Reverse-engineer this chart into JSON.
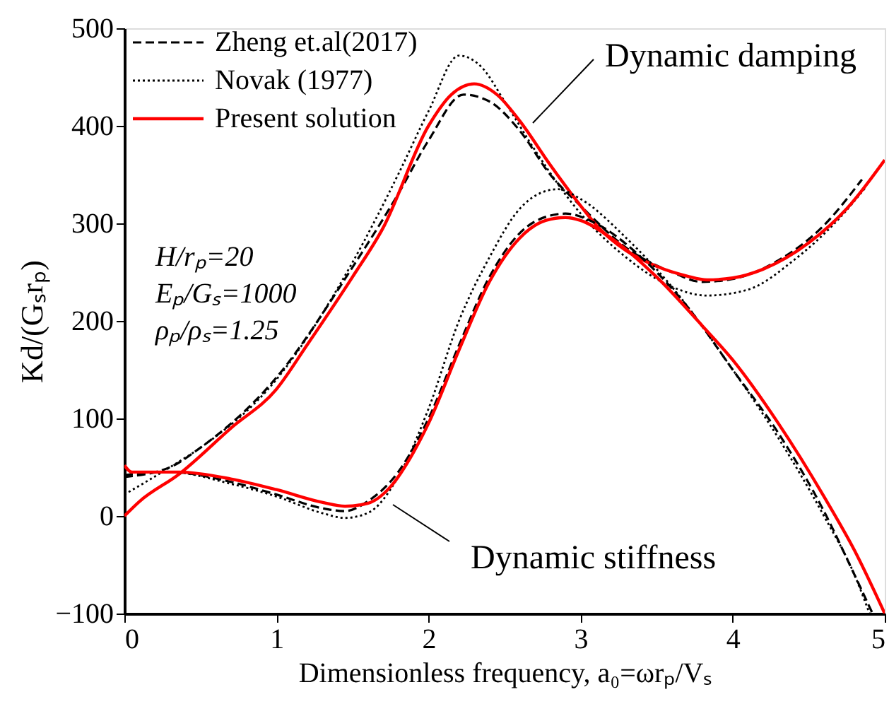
{
  "chart_data": {
    "type": "line",
    "xlabel": "Dimensionless frequency, a₀=ωrₚ/Vₛ",
    "ylabel": "Kd/(Gₛrₚ)",
    "xlim": [
      0,
      5
    ],
    "xticks": [
      0,
      1,
      2,
      3,
      4,
      5
    ],
    "ylim": [
      -100,
      500
    ],
    "yticks": [
      -100,
      0,
      100,
      200,
      300,
      400,
      500
    ],
    "grid": false,
    "legend": "top left",
    "series": [
      {
        "name": "Zheng et.al(2017)",
        "color": "#000000",
        "line_style": "dashed",
        "x": [
          0,
          0.3,
          0.5,
          1,
          1.5,
          1.8,
          2.0,
          2.23,
          2.4,
          2.6,
          2.8,
          3.0,
          3.3,
          3.6,
          3.8,
          4.0,
          4.3,
          4.6,
          4.85
        ],
        "values": [
          40,
          50,
          70,
          142,
          255,
          330,
          385,
          432,
          425,
          395,
          350,
          318,
          275,
          250,
          240,
          243,
          262,
          298,
          345
        ]
      },
      {
        "name": "Novak (1977)",
        "color": "#000000",
        "line_style": "dotted",
        "x": [
          0,
          0.3,
          0.5,
          1,
          1.5,
          1.8,
          2.0,
          2.2,
          2.35,
          2.5,
          2.7,
          3.0,
          3.3,
          3.6,
          3.83,
          4.1,
          4.4,
          4.7,
          4.88
        ],
        "values": [
          22,
          50,
          70,
          140,
          260,
          350,
          415,
          472,
          460,
          425,
          375,
          310,
          265,
          235,
          226,
          232,
          262,
          305,
          338
        ]
      },
      {
        "name": "Present solution",
        "color": "#ff0000",
        "line_style": "solid",
        "x": [
          0,
          0.1,
          0.36,
          0.7,
          1,
          1.2,
          1.5,
          1.7,
          2.0,
          2.15,
          2.3,
          2.45,
          2.6,
          2.8,
          3.0,
          3.11,
          3.3,
          3.5,
          3.7,
          3.83,
          4.0,
          4.2,
          4.5,
          4.75,
          5.0
        ],
        "values": [
          0,
          15,
          43,
          90,
          130,
          175,
          245,
          295,
          400,
          432,
          443,
          432,
          405,
          360,
          318,
          297,
          272,
          256,
          246,
          242,
          244,
          253,
          280,
          315,
          365
        ]
      },
      {
        "color": "#000000",
        "line_style": "dashed",
        "x": [
          0,
          0.3,
          0.7,
          1.0,
          1.3,
          1.45,
          1.6,
          1.8,
          2.0,
          2.2,
          2.4,
          2.6,
          2.8,
          2.9,
          3.1,
          3.4,
          3.7,
          4.0,
          4.3,
          4.6,
          4.8,
          4.92
        ],
        "values": [
          42,
          45,
          35,
          22,
          8,
          5,
          15,
          45,
          100,
          175,
          245,
          290,
          308,
          310,
          300,
          265,
          215,
          150,
          85,
          5,
          -60,
          -100
        ]
      },
      {
        "color": "#000000",
        "line_style": "dotted",
        "x": [
          0,
          0.3,
          0.7,
          1.0,
          1.3,
          1.45,
          1.6,
          1.8,
          2.0,
          2.2,
          2.4,
          2.6,
          2.75,
          2.85,
          3.0,
          3.3,
          3.6,
          4.0,
          4.3,
          4.6,
          4.8,
          4.9
        ],
        "values": [
          45,
          45,
          33,
          20,
          3,
          -2,
          3,
          40,
          110,
          200,
          265,
          315,
          332,
          335,
          325,
          285,
          235,
          150,
          80,
          0,
          -60,
          -100
        ]
      },
      {
        "color": "#ff0000",
        "line_style": "solid",
        "x": [
          0,
          0.05,
          0.36,
          0.7,
          1.0,
          1.3,
          1.45,
          1.6,
          1.75,
          1.9,
          2.0,
          2.2,
          2.4,
          2.6,
          2.77,
          2.9,
          3.0,
          3.2,
          3.5,
          3.8,
          4.0,
          4.3,
          4.6,
          4.8,
          5.0
        ],
        "values": [
          52,
          45,
          45,
          38,
          27,
          14,
          10,
          13,
          30,
          65,
          95,
          170,
          240,
          285,
          303,
          306,
          303,
          285,
          245,
          195,
          160,
          95,
          20,
          -35,
          -100
        ]
      }
    ],
    "annotations": [
      "H/rₚ=20",
      "Eₚ/Gₛ=1000",
      "ρₚ/ρₛ=1.25",
      "Dynamic damping",
      "Dynamic stiffness"
    ]
  }
}
